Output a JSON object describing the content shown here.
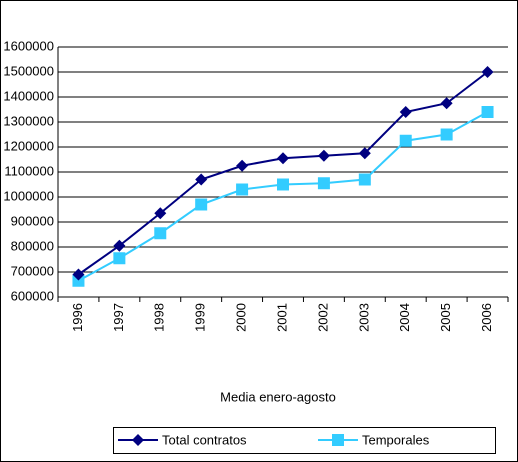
{
  "chart_data": {
    "type": "line",
    "x_label": "Media enero-agosto",
    "categories": [
      "1996",
      "1997",
      "1998",
      "1999",
      "2000",
      "2001",
      "2002",
      "2003",
      "2004",
      "2005",
      "2006"
    ],
    "series": [
      {
        "name": "Total contratos",
        "color": "#000080",
        "marker": "diamond",
        "values": [
          690000,
          805000,
          935000,
          1070000,
          1125000,
          1155000,
          1165000,
          1175000,
          1340000,
          1375000,
          1500000
        ]
      },
      {
        "name": "Temporales",
        "color": "#33ccff",
        "marker": "square",
        "values": [
          665000,
          755000,
          855000,
          970000,
          1030000,
          1050000,
          1055000,
          1070000,
          1225000,
          1250000,
          1340000
        ]
      }
    ],
    "ylim": [
      600000,
      1600000
    ],
    "yticks": [
      600000,
      700000,
      800000,
      900000,
      1000000,
      1100000,
      1200000,
      1300000,
      1400000,
      1500000,
      1600000
    ],
    "grid": true,
    "legend": "bottom"
  }
}
